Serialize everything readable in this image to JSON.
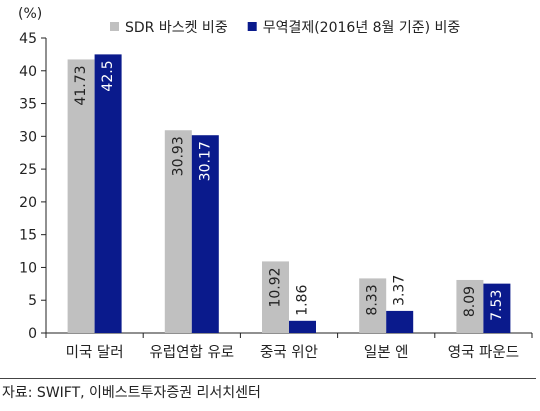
{
  "chart_data": {
    "type": "bar",
    "unit_label": "(%)",
    "categories": [
      "미국 달러",
      "유럽연합 유로",
      "중국 위안",
      "일본 엔",
      "영국 파운드"
    ],
    "series": [
      {
        "name": "SDR 바스켓 비중",
        "color": "#c0c0c0",
        "values": [
          41.73,
          30.93,
          10.92,
          8.33,
          8.09
        ],
        "labels": [
          "41.73",
          "30.93",
          "10.92",
          "8.33",
          "8.09"
        ],
        "label_color": "#222222"
      },
      {
        "name": "무역결제(2016년 8월 기준) 비중",
        "color": "#0a1a8c",
        "values": [
          42.5,
          30.17,
          1.86,
          3.37,
          7.53
        ],
        "labels": [
          "42.5",
          "30.17",
          "1.86",
          "3.37",
          "7.53"
        ],
        "label_color": "#ffffff"
      }
    ],
    "ylim": [
      0,
      45
    ],
    "yticks": [
      "0",
      "5",
      "10",
      "15",
      "20",
      "25",
      "30",
      "35",
      "40",
      "45"
    ],
    "legend_position": "top",
    "grid": false,
    "source": "자료: SWIFT, 이베스트투자증권 리서치센터"
  }
}
